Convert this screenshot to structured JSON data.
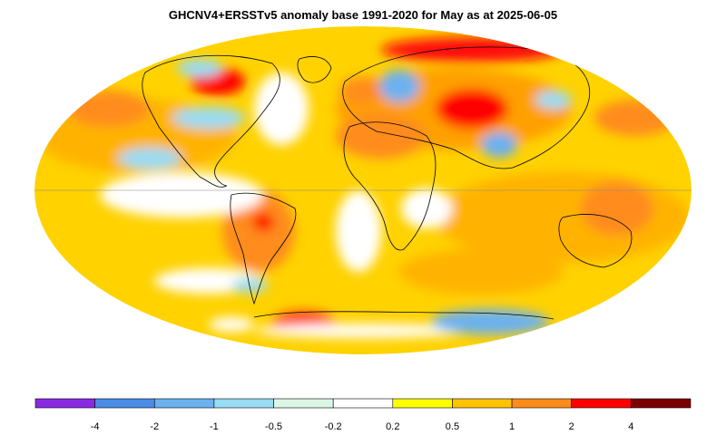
{
  "title": "GHCNV4+ERSSTv5 anomaly base 1991-2020 for May as at 2025-06-05",
  "map": {
    "projection": "mollweide",
    "ocean_base_color": "#ffd700",
    "land_outline_color": "#000000"
  },
  "colorbar": {
    "bins": [
      {
        "color": "#8a2be2"
      },
      {
        "color": "#4a8ce6"
      },
      {
        "color": "#6cb1f0"
      },
      {
        "color": "#98dcf4"
      },
      {
        "color": "#dcf6e6"
      },
      {
        "color": "#ffffff"
      },
      {
        "color": "#ffff00"
      },
      {
        "color": "#ffc300"
      },
      {
        "color": "#ff8c1a"
      },
      {
        "color": "#ff0000"
      },
      {
        "color": "#7a0000"
      }
    ],
    "tick_labels": [
      "-4",
      "-2",
      "-1",
      "-0.5",
      "-0.2",
      "0.2",
      "0.5",
      "1",
      "2",
      "4"
    ]
  }
}
